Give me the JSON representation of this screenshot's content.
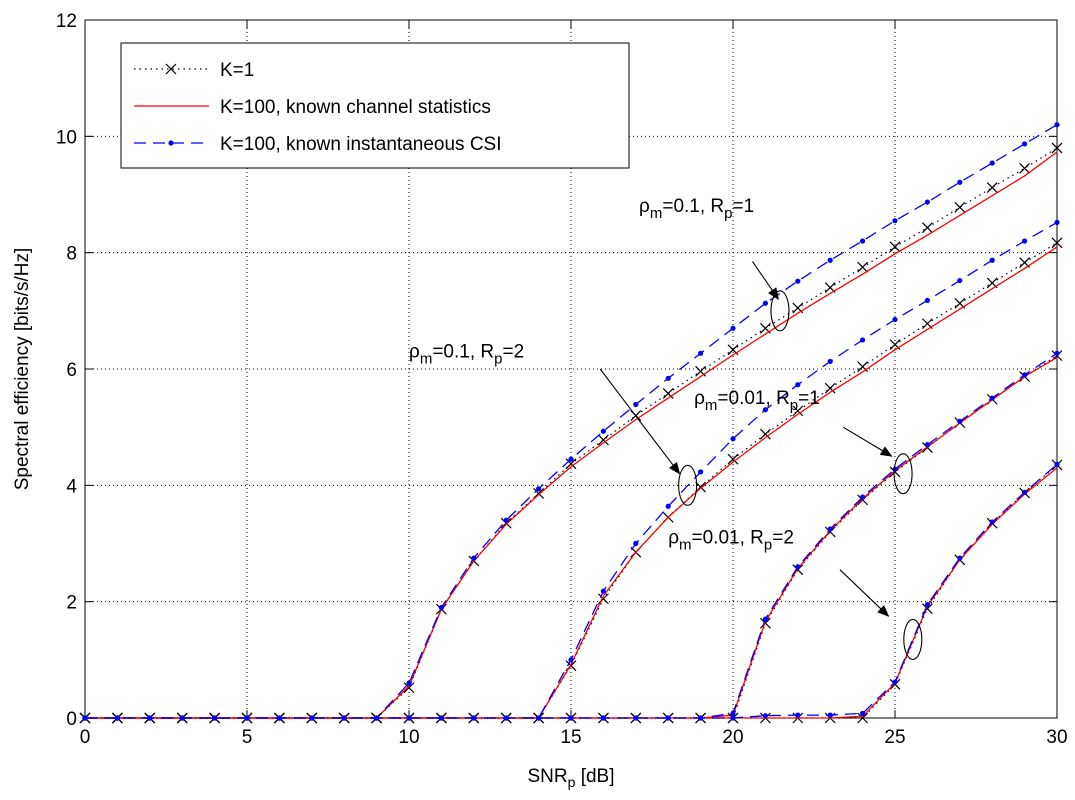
{
  "chart_data": {
    "type": "line",
    "xlabel": {
      "main": "SNR",
      "sub": "p",
      "rest": " [dB]"
    },
    "ylabel": "Spectral efficiency [bits/s/Hz]",
    "xlim": [
      0,
      30
    ],
    "ylim": [
      0,
      12
    ],
    "xticks": [
      0,
      5,
      10,
      15,
      20,
      25,
      30
    ],
    "yticks": [
      0,
      2,
      4,
      6,
      8,
      10,
      12
    ],
    "grid": true,
    "legend_position": "top-left",
    "legend": [
      {
        "label": "K=1",
        "style": "k1"
      },
      {
        "label": "K=100, known channel statistics",
        "style": "stat"
      },
      {
        "label": "K=100, known instantaneous CSI",
        "style": "csi"
      }
    ],
    "styles": {
      "k1": {
        "color": "#000000",
        "dash": "1.5,4",
        "marker": "x"
      },
      "stat": {
        "color": "#ff0000",
        "dash": "",
        "marker": "none"
      },
      "csi": {
        "color": "#0000ff",
        "dash": "12,7",
        "marker": "dot"
      }
    },
    "x": [
      0,
      1,
      2,
      3,
      4,
      5,
      6,
      7,
      8,
      9,
      10,
      11,
      12,
      13,
      14,
      15,
      16,
      17,
      18,
      19,
      20,
      21,
      22,
      23,
      24,
      25,
      26,
      27,
      28,
      29,
      30
    ],
    "groups": [
      {
        "id": "rho01-R1",
        "k1": [
          0,
          0,
          0,
          0,
          0,
          0,
          0,
          0,
          0,
          0,
          0.52,
          1.87,
          2.7,
          3.35,
          3.86,
          4.37,
          4.78,
          5.2,
          5.58,
          5.96,
          6.33,
          6.7,
          7.05,
          7.4,
          7.75,
          8.1,
          8.43,
          8.78,
          9.12,
          9.45,
          9.8
        ],
        "stat": [
          0,
          0,
          0,
          0,
          0,
          0,
          0,
          0,
          0,
          0,
          0.55,
          1.87,
          2.7,
          3.33,
          3.84,
          4.32,
          4.73,
          5.13,
          5.5,
          5.87,
          6.24,
          6.6,
          6.96,
          7.3,
          7.63,
          7.98,
          8.3,
          8.64,
          8.98,
          9.32,
          9.73
        ],
        "csi": [
          0,
          0,
          0,
          0,
          0,
          0,
          0,
          0,
          0,
          0,
          0.6,
          1.9,
          2.75,
          3.4,
          3.94,
          4.45,
          4.93,
          5.39,
          5.84,
          6.27,
          6.7,
          7.13,
          7.51,
          7.87,
          8.2,
          8.55,
          8.87,
          9.21,
          9.54,
          9.87,
          10.2
        ]
      },
      {
        "id": "rho01-R2",
        "k1": [
          0,
          0,
          0,
          0,
          0,
          0,
          0,
          0,
          0,
          0,
          0,
          0,
          0,
          0,
          0,
          0.9,
          2.05,
          2.85,
          3.45,
          3.97,
          4.45,
          4.88,
          5.28,
          5.67,
          6.04,
          6.42,
          6.78,
          7.13,
          7.48,
          7.83,
          8.17
        ],
        "stat": [
          0,
          0,
          0,
          0,
          0,
          0,
          0,
          0,
          0,
          0,
          0,
          0,
          0,
          0,
          0,
          0.92,
          2.1,
          2.85,
          3.45,
          3.95,
          4.4,
          4.82,
          5.22,
          5.6,
          5.95,
          6.33,
          6.68,
          7.03,
          7.38,
          7.73,
          8.1
        ],
        "csi": [
          0,
          0,
          0,
          0,
          0,
          0,
          0,
          0,
          0,
          0,
          0,
          0,
          0,
          0,
          0,
          1.0,
          2.18,
          3.0,
          3.64,
          4.23,
          4.8,
          5.3,
          5.73,
          6.13,
          6.5,
          6.85,
          7.18,
          7.52,
          7.87,
          8.2,
          8.52
        ]
      },
      {
        "id": "rho001-R1",
        "k1": [
          0,
          0,
          0,
          0,
          0,
          0,
          0,
          0,
          0,
          0,
          0,
          0,
          0,
          0,
          0,
          0,
          0,
          0,
          0,
          0,
          0,
          1.63,
          2.55,
          3.2,
          3.75,
          4.23,
          4.65,
          5.08,
          5.48,
          5.87,
          6.23
        ],
        "stat": [
          0,
          0,
          0,
          0,
          0,
          0,
          0,
          0,
          0,
          0,
          0,
          0,
          0,
          0,
          0,
          0,
          0,
          0,
          0,
          0,
          0.05,
          1.66,
          2.57,
          3.22,
          3.77,
          4.25,
          4.66,
          5.07,
          5.47,
          5.87,
          6.2
        ],
        "csi": [
          0,
          0,
          0,
          0,
          0,
          0,
          0,
          0,
          0,
          0,
          0,
          0,
          0,
          0,
          0,
          0,
          0,
          0,
          0,
          0,
          0.08,
          1.7,
          2.6,
          3.25,
          3.8,
          4.28,
          4.7,
          5.1,
          5.5,
          5.9,
          6.27
        ]
      },
      {
        "id": "rho001-R2",
        "k1": [
          0,
          0,
          0,
          0,
          0,
          0,
          0,
          0,
          0,
          0,
          0,
          0,
          0,
          0,
          0,
          0,
          0,
          0,
          0,
          0,
          0,
          0,
          0,
          0,
          0,
          0.58,
          1.88,
          2.72,
          3.35,
          3.87,
          4.35
        ],
        "stat": [
          0,
          0,
          0,
          0,
          0,
          0,
          0,
          0,
          0,
          0,
          0,
          0,
          0,
          0,
          0,
          0,
          0,
          0,
          0,
          0,
          0,
          0,
          0,
          0,
          0.03,
          0.6,
          1.92,
          2.72,
          3.33,
          3.85,
          4.3
        ],
        "csi": [
          0,
          0,
          0,
          0,
          0,
          0,
          0,
          0,
          0,
          0,
          0,
          0,
          0,
          0,
          0,
          0,
          0,
          0,
          0,
          0,
          0,
          0.04,
          0.05,
          0.05,
          0.08,
          0.62,
          1.95,
          2.75,
          3.37,
          3.88,
          4.36
        ]
      }
    ],
    "annotations": [
      {
        "id": "ann-rho01-R1",
        "rho": "0.1",
        "R": "1",
        "text_pos": [
          17.1,
          8.7
        ],
        "ellipse_center": [
          21.45,
          7.0
        ],
        "arrow_from": [
          20.6,
          7.85
        ],
        "arrow_to": [
          21.4,
          7.2
        ]
      },
      {
        "id": "ann-rho01-R2",
        "rho": "0.1",
        "R": "2",
        "text_pos": [
          10.0,
          6.2
        ],
        "ellipse_center": [
          18.6,
          4.0
        ],
        "arrow_from": [
          15.9,
          6.0
        ],
        "arrow_to": [
          18.35,
          4.2
        ]
      },
      {
        "id": "ann-rho001-R1",
        "rho": "0.01",
        "R": "1",
        "text_pos": [
          18.8,
          5.4
        ],
        "ellipse_center": [
          25.25,
          4.2
        ],
        "arrow_from": [
          23.4,
          5.0
        ],
        "arrow_to": [
          24.9,
          4.5
        ]
      },
      {
        "id": "ann-rho001-R2",
        "rho": "0.01",
        "R": "2",
        "text_pos": [
          18.0,
          3.0
        ],
        "ellipse_center": [
          25.55,
          1.35
        ],
        "arrow_from": [
          23.3,
          2.55
        ],
        "arrow_to": [
          24.8,
          1.75
        ]
      }
    ],
    "annotation_text": {
      "rho_symbol": "ρ",
      "rho_sub": "m",
      "r_symbol": "R",
      "r_sub": "p"
    }
  }
}
